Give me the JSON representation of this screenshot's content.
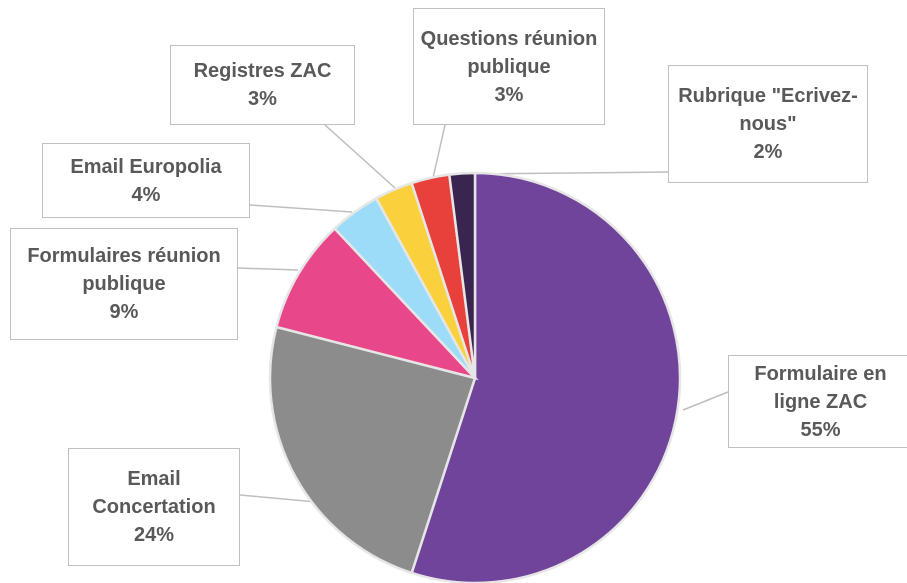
{
  "chart_data": {
    "type": "pie",
    "categories": [
      "Formulaire en ligne ZAC",
      "Email Concertation",
      "Formulaires réunion publique",
      "Email Europolia",
      "Registres ZAC",
      "Questions réunion publique",
      "Rubrique \"Ecrivez-nous\""
    ],
    "values": [
      55,
      24,
      9,
      4,
      3,
      3,
      2
    ],
    "value_labels": [
      "55%",
      "24%",
      "9%",
      "4%",
      "3%",
      "3%",
      "2%"
    ],
    "colors": [
      "#71449b",
      "#8c8c8c",
      "#e8488a",
      "#9ddcf9",
      "#fad13c",
      "#e8403a",
      "#3a2450"
    ]
  }
}
